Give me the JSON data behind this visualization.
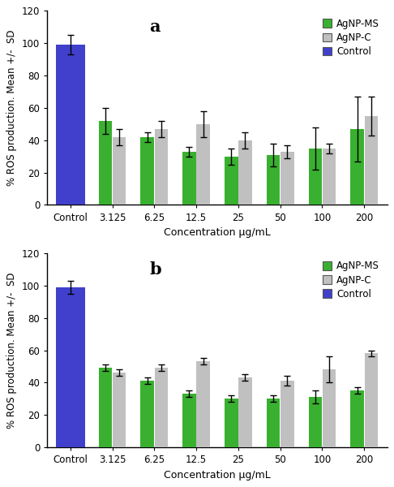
{
  "panel_a": {
    "label": "a",
    "categories": [
      "Control",
      "3.125",
      "6.25",
      "12.5",
      "25",
      "50",
      "100",
      "200"
    ],
    "control_val": 99,
    "control_err": 6,
    "agnp_ms_vals": [
      52,
      42,
      33,
      30,
      31,
      35,
      47
    ],
    "agnp_ms_errs": [
      8,
      3,
      3,
      5,
      7,
      13,
      20
    ],
    "agnp_c_vals": [
      42,
      47,
      50,
      40,
      33,
      35,
      55
    ],
    "agnp_c_errs": [
      5,
      5,
      8,
      5,
      4,
      3,
      12
    ]
  },
  "panel_b": {
    "label": "b",
    "categories": [
      "Control",
      "3.125",
      "6.25",
      "12.5",
      "25",
      "50",
      "100",
      "200"
    ],
    "control_val": 99,
    "control_err": 4,
    "agnp_ms_vals": [
      49,
      41,
      33,
      30,
      30,
      31,
      35
    ],
    "agnp_ms_errs": [
      2,
      2,
      2,
      2,
      2,
      4,
      2
    ],
    "agnp_c_vals": [
      46,
      49,
      53,
      43,
      41,
      48,
      58
    ],
    "agnp_c_errs": [
      2,
      2,
      2,
      2,
      3,
      8,
      2
    ]
  },
  "colors": {
    "agnp_ms": "#3ab030",
    "agnp_c": "#c0c0c0",
    "control": "#4040cc"
  },
  "ylabel": "% ROS production. Mean +/-  SD",
  "xlabel": "Concentration µg/mL",
  "ylim": [
    0,
    120
  ],
  "yticks": [
    0,
    20,
    40,
    60,
    80,
    100,
    120
  ],
  "bar_width": 0.32,
  "legend_labels": [
    "AgNP-MS",
    "AgNP-C",
    "Control"
  ],
  "capsize": 3,
  "elinewidth": 1.0,
  "edgecolor": "#444444"
}
